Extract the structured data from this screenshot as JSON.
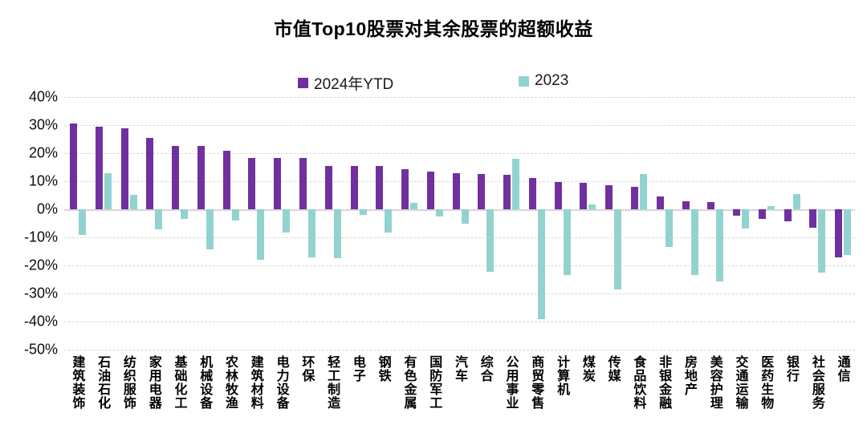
{
  "chart_data": {
    "type": "bar",
    "title": "市值Top10股票对其余股票的超额收益",
    "value_unit": "%",
    "ylim": [
      -50,
      40
    ],
    "yticks": [
      40,
      30,
      20,
      10,
      0,
      -10,
      -20,
      -30,
      -40,
      -50
    ],
    "ytick_labels": [
      "40%",
      "30%",
      "20%",
      "10%",
      "0%",
      "-10%",
      "-20%",
      "-30%",
      "-40%",
      "-50%"
    ],
    "grid": "horizontal-dashed",
    "legend_position": "top",
    "categories": [
      "建筑装饰",
      "石油石化",
      "纺织服饰",
      "家用电器",
      "基础化工",
      "机械设备",
      "农林牧渔",
      "建筑材料",
      "电力设备",
      "环保",
      "轻工制造",
      "电子",
      "钢铁",
      "有色金属",
      "国防军工",
      "汽车",
      "综合",
      "公用事业",
      "商贸零售",
      "计算机",
      "煤炭",
      "传媒",
      "食品饮料",
      "非银金融",
      "房地产",
      "美容护理",
      "交通运输",
      "医药生物",
      "银行",
      "社会服务",
      "通信"
    ],
    "series": [
      {
        "name": "2024年YTD",
        "color": "#7030A0",
        "values": [
          30.7,
          29.3,
          28.8,
          25.3,
          22.6,
          22.5,
          21.0,
          18.4,
          18.2,
          18.2,
          15.5,
          15.4,
          15.3,
          14.2,
          13.5,
          13.0,
          12.6,
          12.2,
          11.1,
          9.6,
          9.4,
          8.7,
          8.1,
          4.5,
          2.9,
          2.6,
          -2.2,
          -3.3,
          -4.2,
          -6.5,
          -17.0
        ]
      },
      {
        "name": "2023",
        "color": "#92D3CF",
        "values": [
          -9.0,
          12.9,
          5.1,
          -7.2,
          -3.3,
          -14.4,
          -4.1,
          -18.1,
          -8.4,
          -17.2,
          -17.4,
          -2.0,
          -8.4,
          2.4,
          -2.5,
          -5.0,
          -22.4,
          17.9,
          -39.0,
          -23.4,
          1.8,
          -28.6,
          12.6,
          -13.3,
          -23.4,
          -25.7,
          -6.9,
          1.1,
          5.3,
          -22.7,
          -16.3
        ]
      }
    ]
  }
}
